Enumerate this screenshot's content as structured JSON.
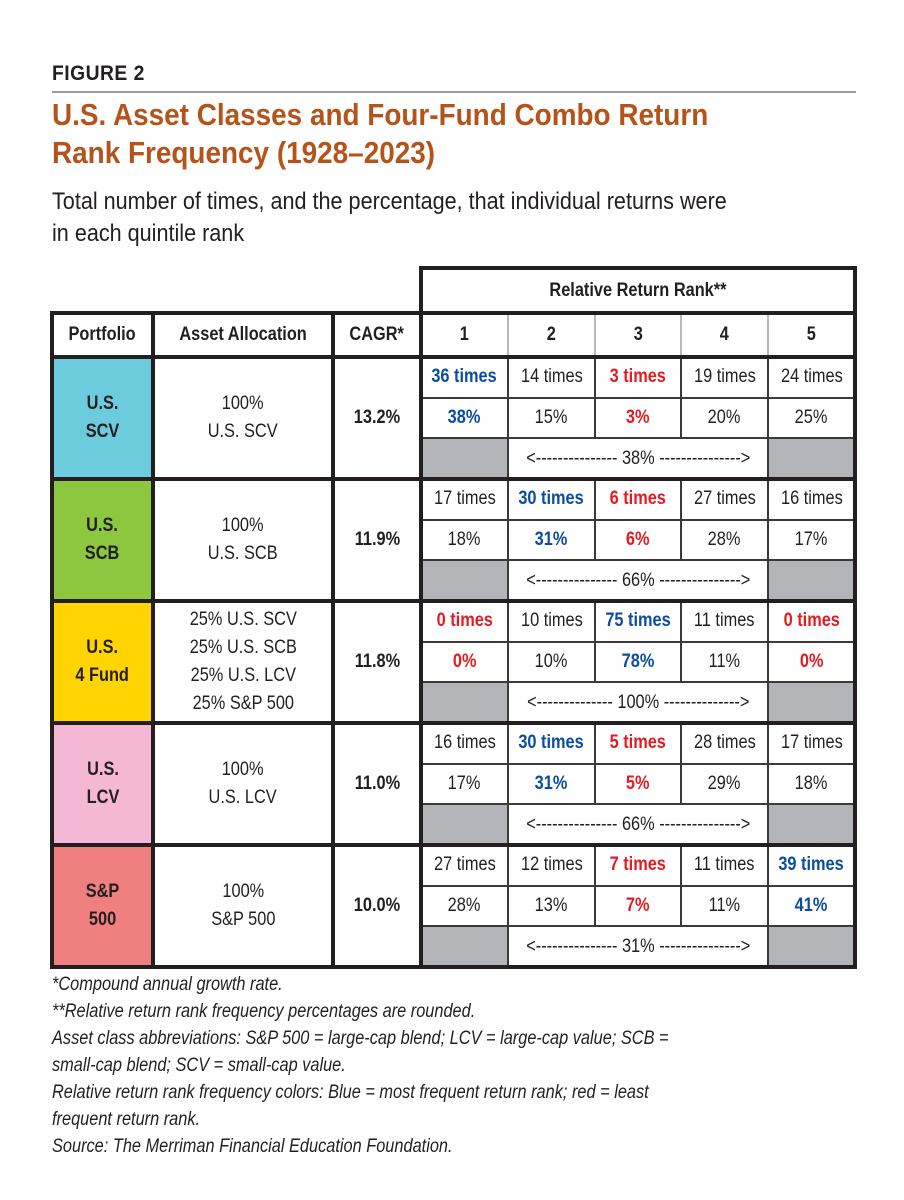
{
  "figure": {
    "label": "FIGURE 2",
    "title_line1": "U.S. Asset Classes and Four-Fund Combo Return",
    "title_line2": "Rank Frequency (1928–2023)",
    "subtitle_line1": "Total number of times, and the percentage, that individual returns were",
    "subtitle_line2": "in each quintile rank"
  },
  "colors": {
    "title": "#b5541a",
    "most_frequent_blue": "#0a4da2",
    "least_frequent_red": "#e31b23",
    "span_gray": "#b3b4b7",
    "us_scv": "#6ccbdc",
    "us_scb": "#8dc63f",
    "us_4fund": "#ffd400",
    "us_lcv": "#f5b8d4",
    "sp500": "#f07f7f"
  },
  "table": {
    "group_header": "Relative Return Rank**",
    "headers": [
      "Portfolio",
      "Asset Allocation",
      "CAGR*",
      "1",
      "2",
      "3",
      "4",
      "5"
    ]
  },
  "chart_data": {
    "type": "table",
    "title": "U.S. Asset Classes and Four-Fund Combo Return Rank Frequency (1928–2023)",
    "subtitle": "Total number of times, and the percentage, that individual returns were in each quintile rank",
    "columns": [
      "Portfolio",
      "Asset Allocation",
      "CAGR*",
      "Rank 1",
      "Rank 2",
      "Rank 3",
      "Rank 4",
      "Rank 5"
    ],
    "rows": [
      {
        "portfolio": "U.S.\nSCV",
        "allocation": "100%\nU.S. SCV",
        "cagr": "13.2%",
        "times": [
          "36 times",
          "14 times",
          "3 times",
          "19 times",
          "24 times"
        ],
        "percent": [
          "38%",
          "15%",
          "3%",
          "20%",
          "25%"
        ],
        "highlight": [
          "blue",
          "",
          "red",
          "",
          ""
        ],
        "middle_span": "<--------------- 38% --------------->",
        "middle_value": 38
      },
      {
        "portfolio": "U.S.\nSCB",
        "allocation": "100%\nU.S. SCB",
        "cagr": "11.9%",
        "times": [
          "17 times",
          "30 times",
          "6 times",
          "27 times",
          "16 times"
        ],
        "percent": [
          "18%",
          "31%",
          "6%",
          "28%",
          "17%"
        ],
        "highlight": [
          "",
          "blue",
          "red",
          "",
          ""
        ],
        "middle_span": "<--------------- 66% --------------->",
        "middle_value": 66
      },
      {
        "portfolio": "U.S.\n4 Fund",
        "allocation": "25% U.S. SCV\n25% U.S. SCB\n25% U.S. LCV\n25% S&P 500",
        "cagr": "11.8%",
        "times": [
          "0 times",
          "10 times",
          "75 times",
          "11 times",
          "0 times"
        ],
        "percent": [
          "0%",
          "10%",
          "78%",
          "11%",
          "0%"
        ],
        "highlight": [
          "red",
          "",
          "blue",
          "",
          "red"
        ],
        "middle_span": "<-------------- 100% -------------->",
        "middle_value": 100
      },
      {
        "portfolio": "U.S.\nLCV",
        "allocation": "100%\nU.S. LCV",
        "cagr": "11.0%",
        "times": [
          "16 times",
          "30 times",
          "5 times",
          "28 times",
          "17 times"
        ],
        "percent": [
          "17%",
          "31%",
          "5%",
          "29%",
          "18%"
        ],
        "highlight": [
          "",
          "blue",
          "red",
          "",
          ""
        ],
        "middle_span": "<--------------- 66% --------------->",
        "middle_value": 66
      },
      {
        "portfolio": "S&P\n500",
        "allocation": "100%\nS&P 500",
        "cagr": "10.0%",
        "times": [
          "27 times",
          "12 times",
          "7 times",
          "11 times",
          "39 times"
        ],
        "percent": [
          "28%",
          "13%",
          "7%",
          "11%",
          "41%"
        ],
        "highlight": [
          "",
          "",
          "red",
          "",
          "blue"
        ],
        "middle_span": "<--------------- 31% --------------->",
        "middle_value": 31
      }
    ]
  },
  "notes": [
    "*Compound annual growth rate.",
    "**Relative return rank frequency percentages are rounded.",
    "Asset class abbreviations: S&P 500 = large-cap blend; LCV = large-cap value; SCB =",
    "small-cap blend; SCV = small-cap value.",
    "Relative return rank frequency colors: Blue = most frequent return rank; red = least",
    "frequent return rank.",
    "Source: The Merriman Financial Education Foundation."
  ]
}
